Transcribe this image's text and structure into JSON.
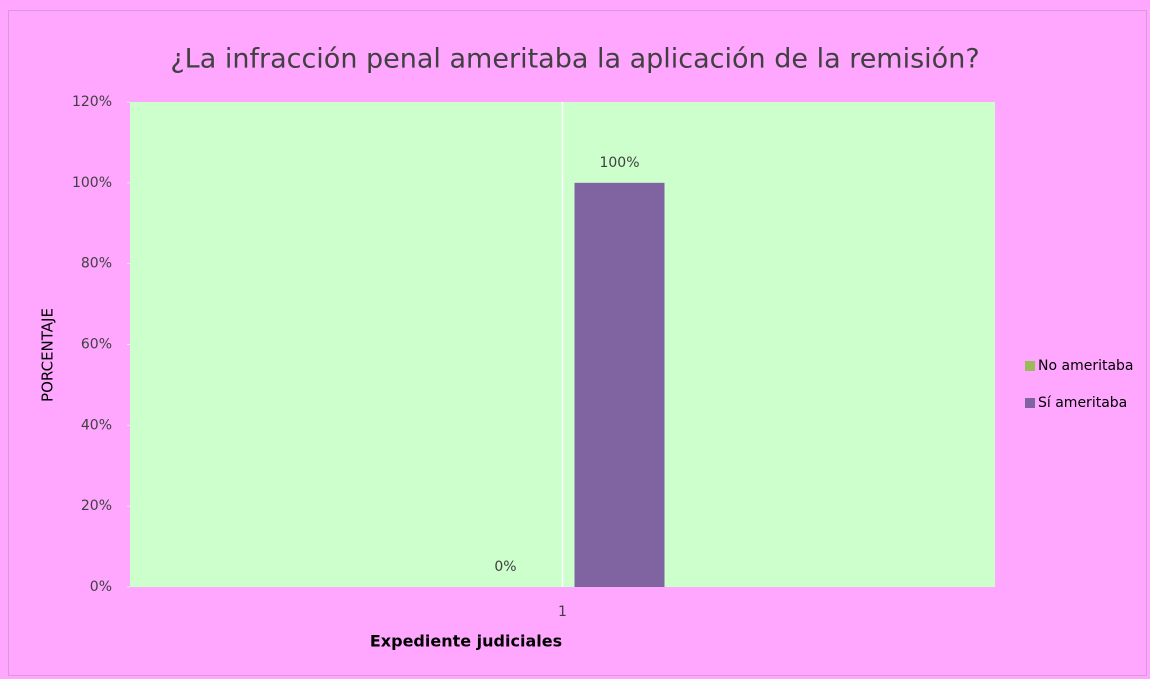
{
  "chart_data": {
    "type": "bar",
    "title": "¿La infracción penal ameritaba la aplicación de la remisión?",
    "y_label": "PORCENTAJE",
    "x_label": "Expediente judiciales",
    "categories": [
      "1"
    ],
    "series": [
      {
        "name": "No ameritaba",
        "color": "#9bbb59",
        "values": [
          0
        ],
        "value_labels": [
          "0%"
        ]
      },
      {
        "name": "Sí ameritaba",
        "color": "#8064a2",
        "values": [
          100
        ],
        "value_labels": [
          "100%"
        ]
      }
    ],
    "ylim": [
      0,
      120
    ],
    "yticks": [
      {
        "value": 0,
        "label": "0%"
      },
      {
        "value": 20,
        "label": "20%"
      },
      {
        "value": 40,
        "label": "40%"
      },
      {
        "value": 60,
        "label": "60%"
      },
      {
        "value": 80,
        "label": "80%"
      },
      {
        "value": 100,
        "label": "100%"
      },
      {
        "value": 120,
        "label": "120%"
      }
    ],
    "legend": "right"
  }
}
